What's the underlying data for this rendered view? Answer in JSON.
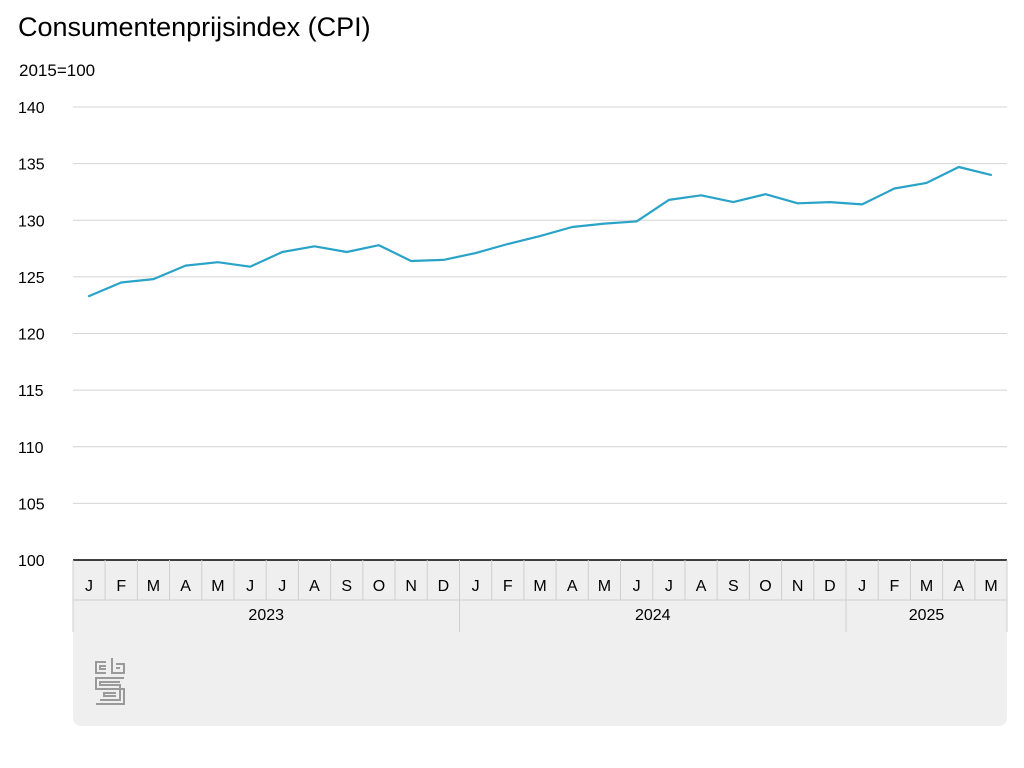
{
  "title": "Consumentenprijsindex (CPI)",
  "subtitle": "2015=100",
  "logo_text": "cbs",
  "colors": {
    "line": "#2aa3c8",
    "grid": "#d4d4d4",
    "axis_band": "#efefef",
    "axis_line": "#000000"
  },
  "chart_data": {
    "type": "line",
    "title": "Consumentenprijsindex (CPI)",
    "ylabel": "2015=100",
    "ylim": [
      100,
      140
    ],
    "yticks": [
      100,
      105,
      110,
      115,
      120,
      125,
      130,
      135,
      140
    ],
    "grid": true,
    "categories": [
      "J",
      "F",
      "M",
      "A",
      "M",
      "J",
      "J",
      "A",
      "S",
      "O",
      "N",
      "D",
      "J",
      "F",
      "M",
      "A",
      "M",
      "J",
      "J",
      "A",
      "S",
      "O",
      "N",
      "D",
      "J",
      "F",
      "M",
      "A",
      "M"
    ],
    "years": [
      {
        "label": "2023",
        "months": 12
      },
      {
        "label": "2024",
        "months": 12
      },
      {
        "label": "2025",
        "months": 5
      }
    ],
    "series": [
      {
        "values": [
          123.3,
          124.5,
          124.8,
          126.0,
          126.3,
          125.9,
          127.2,
          127.7,
          127.2,
          127.8,
          126.4,
          126.5,
          127.1,
          127.9,
          128.6,
          129.4,
          129.7,
          129.9,
          131.8,
          132.2,
          131.6,
          132.3,
          131.5,
          131.6,
          131.4,
          132.8,
          133.3,
          134.7,
          134.0
        ]
      }
    ]
  }
}
